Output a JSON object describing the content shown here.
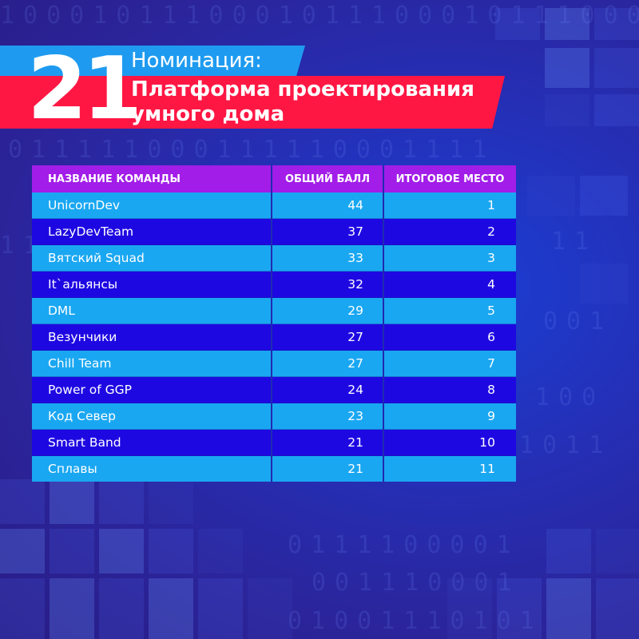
{
  "nomination": {
    "number": "21",
    "label": "Номинация:",
    "title_line1": "Платформа проектирования",
    "title_line2": "умного дома"
  },
  "table": {
    "headers": {
      "team": "НАЗВАНИЕ КОМАНДЫ",
      "score": "ОБЩИЙ БАЛЛ",
      "place": "ИТОГОВОЕ МЕСТО"
    },
    "rows": [
      {
        "team": "UnicornDev",
        "score": "44",
        "place": "1"
      },
      {
        "team": "LazyDevTeam",
        "score": "37",
        "place": "2"
      },
      {
        "team": "Вятский Squad",
        "score": "33",
        "place": "3"
      },
      {
        "team": "It`альянсы",
        "score": "32",
        "place": "4"
      },
      {
        "team": "DML",
        "score": "29",
        "place": "5"
      },
      {
        "team": "Везунчики",
        "score": "27",
        "place": "6"
      },
      {
        "team": "Chill Team",
        "score": "27",
        "place": "7"
      },
      {
        "team": "Power of GGP",
        "score": "24",
        "place": "8"
      },
      {
        "team": "Код Север",
        "score": "23",
        "place": "9"
      },
      {
        "team": "Smart Band",
        "score": "21",
        "place": "10"
      },
      {
        "team": "Сплавы",
        "score": "21",
        "place": "11"
      }
    ]
  },
  "colors": {
    "header_bg": "#a21de8",
    "row_light": "#1aa7f2",
    "row_dark": "#1e08e2",
    "banner_red": "#ff1744",
    "banner_blue": "#1e9bf0"
  }
}
